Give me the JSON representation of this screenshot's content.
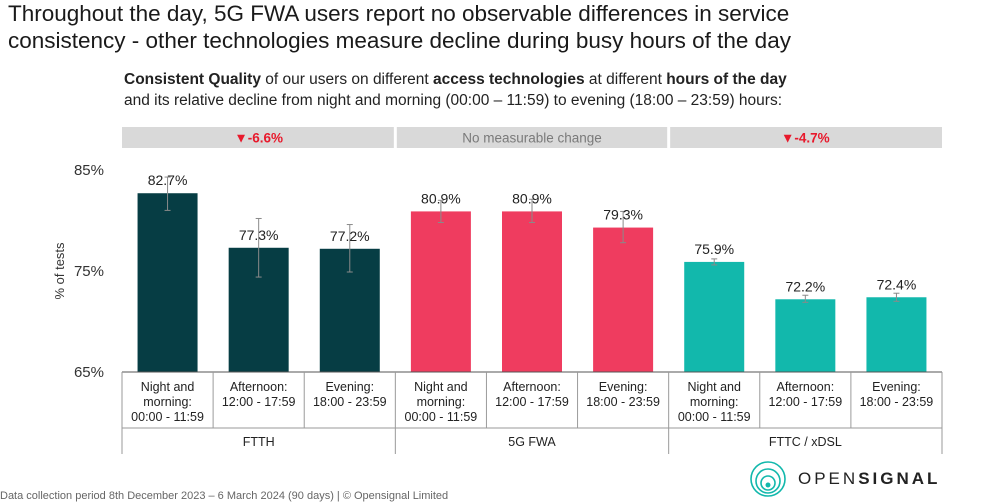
{
  "title": {
    "line1": "Throughout the day, 5G FWA users report no observable differences in service",
    "line2": "consistency - other technologies measure decline during busy hours of the day"
  },
  "subtitle": {
    "p1": "Consistent Quality",
    "p2": " of our users on different ",
    "p3": "access technologies",
    "p4": " at different ",
    "p5": "hours of the day",
    "line2": "and its relative decline from night and morning (00:00 – 11:59) to evening (18:00 – 23:59) hours:"
  },
  "footnote": "Data collection period 8th December 2023 – 6 March 2024 (90 days) | © Opensignal Limited",
  "logo": {
    "light": "OPEN",
    "bold": "SIGNAL"
  },
  "colors": {
    "ftth": "#063d44",
    "fwa": "#ef3c5f",
    "fttc": "#12b8ac",
    "banner": "#d9d9d9",
    "decline": "#e8192c",
    "neutral": "#7a7a7a"
  },
  "chart_data": {
    "type": "bar",
    "ylabel": "% of tests",
    "ylim": [
      65,
      85
    ],
    "yticks": [
      65,
      75,
      85
    ],
    "ytick_labels": [
      "65%",
      "75%",
      "85%"
    ],
    "groups": [
      {
        "name": "FTTH",
        "color": "#063d44",
        "banner": "▼-6.6%",
        "banner_type": "decline",
        "bars": [
          {
            "label": [
              "Night and",
              "morning:",
              "00:00 - 11:59"
            ],
            "value": 82.7,
            "value_label": "82.7%",
            "err": [
              81.0,
              84.3
            ]
          },
          {
            "label": [
              "Afternoon:",
              "12:00 - 17:59"
            ],
            "value": 77.3,
            "value_label": "77.3%",
            "err": [
              74.4,
              80.2
            ]
          },
          {
            "label": [
              "Evening:",
              "18:00 - 23:59"
            ],
            "value": 77.2,
            "value_label": "77.2%",
            "err": [
              74.9,
              79.6
            ]
          }
        ]
      },
      {
        "name": "5G FWA",
        "color": "#ef3c5f",
        "banner": "No measurable change",
        "banner_type": "neutral",
        "bars": [
          {
            "label": [
              "Night and",
              "morning:",
              "00:00 - 11:59"
            ],
            "value": 80.9,
            "value_label": "80.9%",
            "err": [
              79.8,
              82.0
            ]
          },
          {
            "label": [
              "Afternoon:",
              "12:00 - 17:59"
            ],
            "value": 80.9,
            "value_label": "80.9%",
            "err": [
              79.8,
              82.1
            ]
          },
          {
            "label": [
              "Evening:",
              "18:00 - 23:59"
            ],
            "value": 79.3,
            "value_label": "79.3%",
            "err": [
              77.8,
              80.9
            ]
          }
        ]
      },
      {
        "name": "FTTC / xDSL",
        "color": "#12b8ac",
        "banner": "▼-4.7%",
        "banner_type": "decline",
        "bars": [
          {
            "label": [
              "Night and",
              "morning:",
              "00:00 - 11:59"
            ],
            "value": 75.9,
            "value_label": "75.9%",
            "err": [
              75.6,
              76.2
            ]
          },
          {
            "label": [
              "Afternoon:",
              "12:00 - 17:59"
            ],
            "value": 72.2,
            "value_label": "72.2%",
            "err": [
              71.9,
              72.6
            ]
          },
          {
            "label": [
              "Evening:",
              "18:00 - 23:59"
            ],
            "value": 72.4,
            "value_label": "72.4%",
            "err": [
              72.0,
              72.8
            ]
          }
        ]
      }
    ]
  }
}
